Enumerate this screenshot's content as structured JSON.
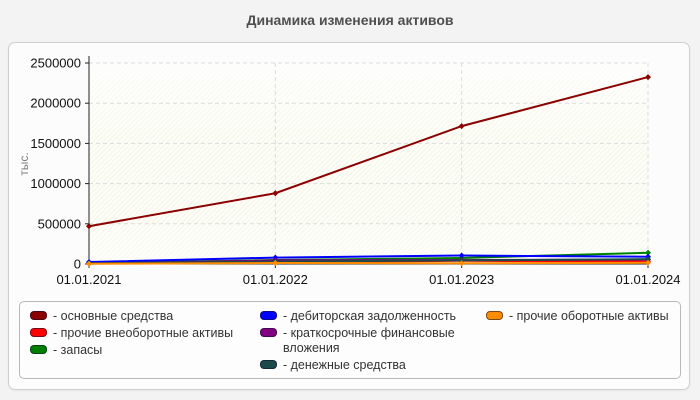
{
  "title": "Динамика изменения активов",
  "chart_data": {
    "type": "line",
    "x": [
      "01.01.2021",
      "01.01.2022",
      "01.01.2023",
      "01.01.2024"
    ],
    "ylabel": "тыс.",
    "ylim": [
      0,
      2500000
    ],
    "yticks": [
      0,
      500000,
      1000000,
      1500000,
      2000000,
      2500000
    ],
    "grid": "dashed",
    "legend_position": "bottom",
    "plot_bg": "#f7f7e9",
    "axis_color": "#222222",
    "grid_color": "#dcdcdc",
    "series": [
      {
        "name": "основные средства",
        "color": "#8B0000",
        "values": [
          470000,
          880000,
          1715000,
          2325000
        ]
      },
      {
        "name": "прочие внеоборотные активы",
        "color": "#FF0000",
        "values": [
          10000,
          20000,
          40000,
          30000
        ]
      },
      {
        "name": "запасы",
        "color": "#008000",
        "values": [
          12000,
          50000,
          75000,
          140000
        ]
      },
      {
        "name": "дебиторская задолженность",
        "color": "#0000FF",
        "values": [
          25000,
          80000,
          105000,
          90000
        ]
      },
      {
        "name": "краткосрочные финансовые вложения",
        "color": "#800080",
        "values": [
          5000,
          45000,
          50000,
          55000
        ]
      },
      {
        "name": "денежные средства",
        "color": "#1C4A4A",
        "values": [
          8000,
          30000,
          45000,
          60000
        ]
      },
      {
        "name": "прочие оборотные активы",
        "color": "#FF8C00",
        "values": [
          3000,
          12000,
          10000,
          15000
        ]
      }
    ]
  },
  "legend": {
    "columns": [
      {
        "items": [
          {
            "label": "- основные средства"
          },
          {
            "label": "- прочие внеоборотные активы"
          },
          {
            "label": "- запасы"
          }
        ]
      },
      {
        "items": [
          {
            "label": "- дебиторская задолженность"
          },
          {
            "label": "- краткосрочные финансовые вложения"
          },
          {
            "label": "- денежные средства"
          }
        ]
      },
      {
        "items": [
          {
            "label": "- прочие оборотные активы"
          }
        ]
      }
    ]
  }
}
